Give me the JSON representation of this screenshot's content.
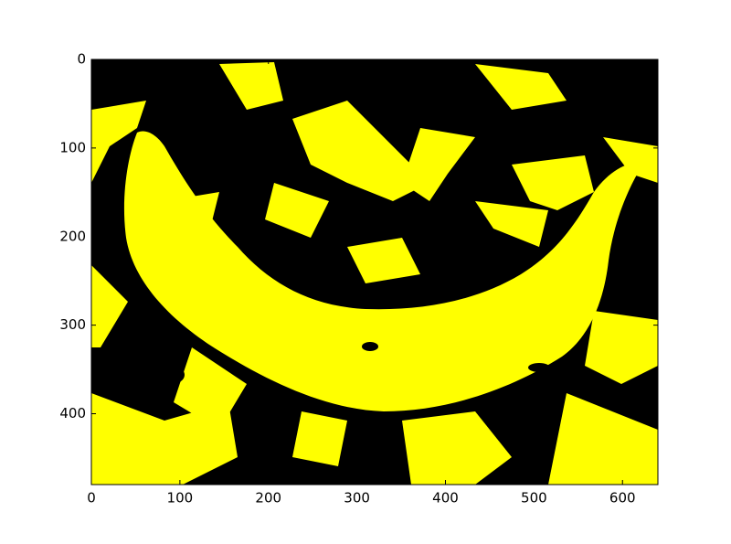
{
  "chart_data": {
    "type": "image",
    "xlim": [
      0,
      640
    ],
    "ylim": [
      480,
      0
    ],
    "xticks": [
      0,
      100,
      200,
      300,
      400,
      500,
      600
    ],
    "yticks": [
      0,
      100,
      200,
      300,
      400
    ]
  }
}
